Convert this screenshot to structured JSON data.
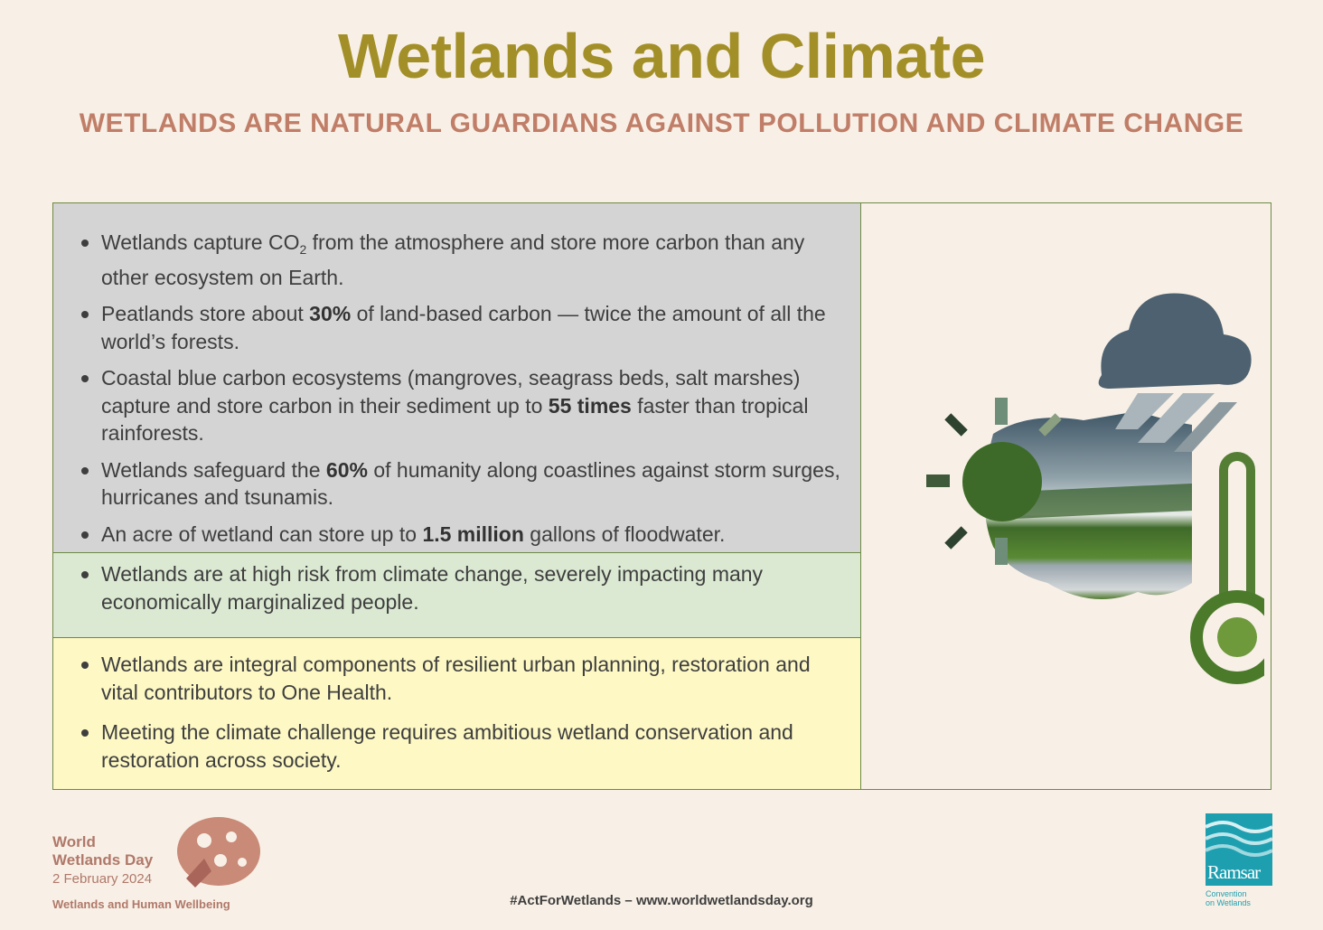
{
  "header": {
    "title": "Wetlands and Climate",
    "subtitle": "WETLANDS ARE NATURAL GUARDIANS AGAINST POLLUTION AND CLIMATE CHANGE"
  },
  "gray_box": {
    "b1_pre": "Wetlands capture CO",
    "b1_sub": "2",
    "b1_post": " from the atmosphere and store more carbon than any other ecosystem on Earth.",
    "b2_pre": "Peatlands store about ",
    "b2_bold": "30%",
    "b2_post": " of land-based carbon — twice the amount of all the world’s forests.",
    "b3_pre": "Coastal blue carbon ecosystems (mangroves, seagrass beds, salt marshes) capture and store carbon in their sediment up to ",
    "b3_bold": "55 times",
    "b3_post": " faster than tropical rainforests.",
    "b4_pre": "Wetlands safeguard the ",
    "b4_bold": "60%",
    "b4_post": " of humanity along coastlines against storm surges, hurricanes and tsunamis.",
    "b5_pre": "An acre of wetland can store up to ",
    "b5_bold": "1.5 million",
    "b5_post": " gallons of floodwater."
  },
  "green_box": {
    "b1": "Wetlands are at high risk from climate change, severely impacting many economically marginalized people."
  },
  "yellow_box": {
    "b1": "Wetlands are integral components of resilient urban planning, restoration and vital contributors to One Health.",
    "b2": "Meeting the climate challenge requires ambitious wetland conservation and restoration across society."
  },
  "footer": {
    "wwd_line1": "World",
    "wwd_line2": "Wetlands Day",
    "wwd_date": "2 February 2024",
    "wwd_theme": "Wetlands and Human Wellbeing",
    "hashtag": "#ActForWetlands – www.worldwetlandsday.org",
    "ramsar_name": "Ramsar",
    "ramsar_sub1": "Convention",
    "ramsar_sub2": "on Wetlands"
  },
  "colors": {
    "title": "#a38f28",
    "subtitle": "#c07e68",
    "gray_box": "#d4d4d4",
    "green_box": "#dbe9d2",
    "yellow_box": "#fdf8c4",
    "border": "#6c8a45",
    "ramsar": "#1e9fb0"
  },
  "icons": [
    "cloud-icon",
    "sun-icon",
    "thermometer-icon",
    "wetlands-emblem-icon",
    "ramsar-logo-icon"
  ]
}
